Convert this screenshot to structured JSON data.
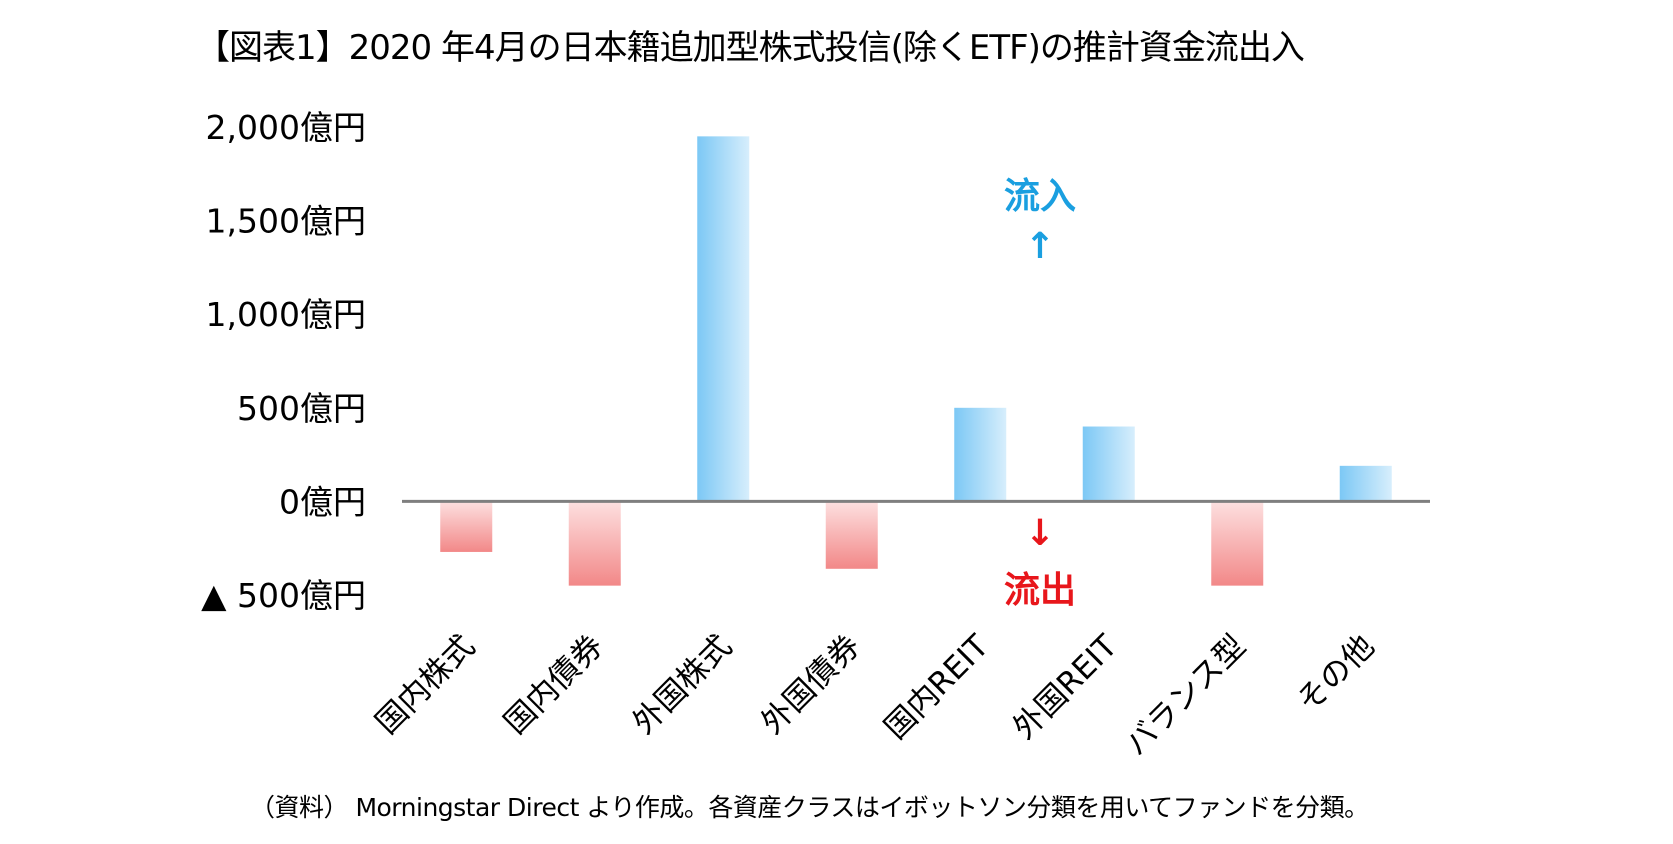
{
  "chart_data": {
    "type": "bar",
    "title": "【図表1】2020 年4月の日本籍追加型株式投信(除くETF)の推計資金流出入",
    "categories": [
      "国内株式",
      "国内債券",
      "外国株式",
      "外国債券",
      "国内REIT",
      "外国REIT",
      "バランス型",
      "その他"
    ],
    "values": [
      -270,
      -450,
      1950,
      -360,
      500,
      400,
      -450,
      190
    ],
    "unit": "億円",
    "ylim": [
      -500,
      2000
    ],
    "yticks": [
      {
        "value": 2000,
        "label": "2,000億円"
      },
      {
        "value": 1500,
        "label": "1,500億円"
      },
      {
        "value": 1000,
        "label": "1,000億円"
      },
      {
        "value": 500,
        "label": "500億円"
      },
      {
        "value": 0,
        "label": "0億円"
      },
      {
        "value": -500,
        "label": "▲ 500億円"
      }
    ],
    "annotations": {
      "inflow_label": "流入",
      "inflow_arrow": "↑",
      "outflow_label": "流出",
      "outflow_arrow": "↓"
    },
    "positive_color": "#8dd0f7",
    "negative_color": "#f28b8b",
    "inflow_text_color": "#1a9fe0",
    "outflow_text_color": "#e8161b",
    "axis_color": "#7f7f7f",
    "grid": false,
    "legend": "none"
  },
  "source_note": "（資料） Morningstar Direct より作成。各資産クラスはイボットソン分類を用いてファンドを分類。"
}
